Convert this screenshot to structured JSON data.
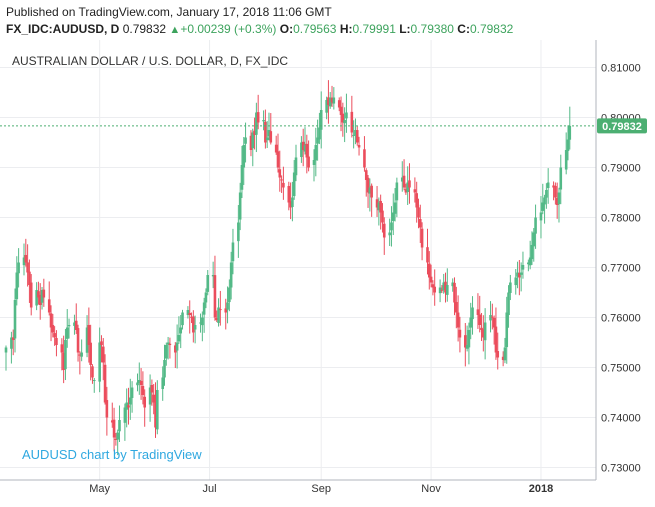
{
  "header": {
    "published": "Published on TradingView.com, January 17, 2018 11:06 GMT",
    "symbol": "FX_IDC:AUDUSD, D",
    "last": "0.79832",
    "arrow": "▲",
    "change": "+0.00239 (+0.3%)",
    "o_label": "O:",
    "o_value": "0.79563",
    "h_label": "H:",
    "h_value": "0.79991",
    "l_label": "L:",
    "l_value": "0.79380",
    "c_label": "C:",
    "c_value": "0.79832"
  },
  "watermark": "AUDUSD chart by TradingView",
  "colors": {
    "up": "#53b987",
    "down": "#eb4d5c",
    "grid": "#ecedf0",
    "price_label_bg": "#4caf72",
    "watermark": "#2fa8e0"
  },
  "chart_data": {
    "type": "candlestick",
    "title": "AUSTRALIAN DOLLAR / U.S. DOLLAR, D, FX_IDC",
    "ylim": [
      0.7275,
      0.8155
    ],
    "y_ticks": [
      "0.81000",
      "0.80000",
      "0.79000",
      "0.78000",
      "0.77000",
      "0.76000",
      "0.75000",
      "0.74000",
      "0.73000"
    ],
    "y_tick_values": [
      0.81,
      0.8,
      0.79,
      0.78,
      0.77,
      0.76,
      0.75,
      0.74,
      0.73
    ],
    "x_ticks": [
      "May",
      "Jul",
      "Sep",
      "Nov",
      "2018"
    ],
    "x_tick_dates": [
      "2017-05-01",
      "2017-07-01",
      "2017-09-01",
      "2017-11-01",
      "2018-01-01"
    ],
    "x_range": [
      "2017-03-10",
      "2018-01-26"
    ],
    "last_price": 0.79832,
    "last_price_label": "0.79832",
    "grid": true,
    "daily_closes": [
      [
        "2017-03-10",
        0.754
      ],
      [
        "2017-03-13",
        0.756
      ],
      [
        "2017-03-14",
        0.7555
      ],
      [
        "2017-03-15",
        0.7635
      ],
      [
        "2017-03-16",
        0.769
      ],
      [
        "2017-03-17",
        0.771
      ],
      [
        "2017-03-20",
        0.772
      ],
      [
        "2017-03-21",
        0.771
      ],
      [
        "2017-03-22",
        0.769
      ],
      [
        "2017-03-23",
        0.7665
      ],
      [
        "2017-03-24",
        0.762
      ],
      [
        "2017-03-27",
        0.7655
      ],
      [
        "2017-03-28",
        0.764
      ],
      [
        "2017-03-29",
        0.7625
      ],
      [
        "2017-03-30",
        0.7655
      ],
      [
        "2017-03-31",
        0.764
      ],
      [
        "2017-04-03",
        0.761
      ],
      [
        "2017-04-04",
        0.758
      ],
      [
        "2017-04-05",
        0.757
      ],
      [
        "2017-04-06",
        0.756
      ],
      [
        "2017-04-07",
        0.7545
      ],
      [
        "2017-04-10",
        0.753
      ],
      [
        "2017-04-11",
        0.7495
      ],
      [
        "2017-04-12",
        0.7555
      ],
      [
        "2017-04-13",
        0.758
      ],
      [
        "2017-04-14",
        0.7585
      ],
      [
        "2017-04-17",
        0.759
      ],
      [
        "2017-04-18",
        0.7575
      ],
      [
        "2017-04-19",
        0.753
      ],
      [
        "2017-04-20",
        0.7525
      ],
      [
        "2017-04-21",
        0.753
      ],
      [
        "2017-04-24",
        0.758
      ],
      [
        "2017-04-25",
        0.7545
      ],
      [
        "2017-04-26",
        0.7505
      ],
      [
        "2017-04-27",
        0.748
      ],
      [
        "2017-04-28",
        0.7475
      ],
      [
        "2017-05-01",
        0.755
      ],
      [
        "2017-05-02",
        0.7545
      ],
      [
        "2017-05-03",
        0.751
      ],
      [
        "2017-05-04",
        0.743
      ],
      [
        "2017-05-05",
        0.74
      ],
      [
        "2017-05-08",
        0.739
      ],
      [
        "2017-05-09",
        0.736
      ],
      [
        "2017-05-10",
        0.7355
      ],
      [
        "2017-05-11",
        0.737
      ],
      [
        "2017-05-12",
        0.7395
      ],
      [
        "2017-05-15",
        0.742
      ],
      [
        "2017-05-16",
        0.743
      ],
      [
        "2017-05-17",
        0.742
      ],
      [
        "2017-05-18",
        0.744
      ],
      [
        "2017-05-19",
        0.746
      ],
      [
        "2017-05-22",
        0.747
      ],
      [
        "2017-05-23",
        0.7475
      ],
      [
        "2017-05-24",
        0.7465
      ],
      [
        "2017-05-25",
        0.7445
      ],
      [
        "2017-05-26",
        0.742
      ],
      [
        "2017-05-29",
        0.746
      ],
      [
        "2017-05-30",
        0.745
      ],
      [
        "2017-05-31",
        0.743
      ],
      [
        "2017-06-01",
        0.738
      ],
      [
        "2017-06-02",
        0.7455
      ],
      [
        "2017-06-05",
        0.748
      ],
      [
        "2017-06-06",
        0.7515
      ],
      [
        "2017-06-07",
        0.7545
      ],
      [
        "2017-06-08",
        0.755
      ],
      [
        "2017-06-09",
        0.7545
      ],
      [
        "2017-06-12",
        0.753
      ],
      [
        "2017-06-13",
        0.755
      ],
      [
        "2017-06-14",
        0.7565
      ],
      [
        "2017-06-15",
        0.758
      ],
      [
        "2017-06-16",
        0.761
      ],
      [
        "2017-06-19",
        0.7615
      ],
      [
        "2017-06-20",
        0.7605
      ],
      [
        "2017-06-21",
        0.76
      ],
      [
        "2017-06-22",
        0.757
      ],
      [
        "2017-06-23",
        0.7585
      ],
      [
        "2017-06-26",
        0.759
      ],
      [
        "2017-06-27",
        0.76
      ],
      [
        "2017-06-28",
        0.763
      ],
      [
        "2017-06-29",
        0.765
      ],
      [
        "2017-06-30",
        0.7685
      ],
      [
        "2017-07-03",
        0.7685
      ],
      [
        "2017-07-04",
        0.76
      ],
      [
        "2017-07-05",
        0.7595
      ],
      [
        "2017-07-06",
        0.762
      ],
      [
        "2017-07-07",
        0.7615
      ],
      [
        "2017-07-10",
        0.761
      ],
      [
        "2017-07-11",
        0.763
      ],
      [
        "2017-07-12",
        0.766
      ],
      [
        "2017-07-13",
        0.771
      ],
      [
        "2017-07-14",
        0.775
      ],
      [
        "2017-07-17",
        0.779
      ],
      [
        "2017-07-18",
        0.785
      ],
      [
        "2017-07-19",
        0.7905
      ],
      [
        "2017-07-20",
        0.7945
      ],
      [
        "2017-07-21",
        0.796
      ],
      [
        "2017-07-24",
        0.7935
      ],
      [
        "2017-07-25",
        0.797
      ],
      [
        "2017-07-26",
        0.7965
      ],
      [
        "2017-07-27",
        0.801
      ],
      [
        "2017-07-28",
        0.799
      ],
      [
        "2017-07-31",
        0.7995
      ],
      [
        "2017-08-01",
        0.795
      ],
      [
        "2017-08-02",
        0.796
      ],
      [
        "2017-08-03",
        0.7975
      ],
      [
        "2017-08-04",
        0.795
      ],
      [
        "2017-08-07",
        0.793
      ],
      [
        "2017-08-08",
        0.79
      ],
      [
        "2017-08-09",
        0.788
      ],
      [
        "2017-08-10",
        0.7875
      ],
      [
        "2017-08-11",
        0.786
      ],
      [
        "2017-08-14",
        0.783
      ],
      [
        "2017-08-15",
        0.782
      ],
      [
        "2017-08-16",
        0.784
      ],
      [
        "2017-08-17",
        0.789
      ],
      [
        "2017-08-18",
        0.792
      ],
      [
        "2017-08-21",
        0.795
      ],
      [
        "2017-08-22",
        0.7935
      ],
      [
        "2017-08-23",
        0.7945
      ],
      [
        "2017-08-24",
        0.792
      ],
      [
        "2017-08-25",
        0.79
      ],
      [
        "2017-08-28",
        0.7915
      ],
      [
        "2017-08-29",
        0.7945
      ],
      [
        "2017-08-30",
        0.796
      ],
      [
        "2017-08-31",
        0.798
      ],
      [
        "2017-09-01",
        0.8015
      ],
      [
        "2017-09-04",
        0.8035
      ],
      [
        "2017-09-05",
        0.8025
      ],
      [
        "2017-09-06",
        0.804
      ],
      [
        "2017-09-07",
        0.803
      ],
      [
        "2017-09-08",
        0.804
      ],
      [
        "2017-09-11",
        0.802
      ],
      [
        "2017-09-12",
        0.8005
      ],
      [
        "2017-09-13",
        0.799
      ],
      [
        "2017-09-14",
        0.7995
      ],
      [
        "2017-09-15",
        0.801
      ],
      [
        "2017-09-18",
        0.797
      ],
      [
        "2017-09-19",
        0.7965
      ],
      [
        "2017-09-20",
        0.7975
      ],
      [
        "2017-09-21",
        0.795
      ],
      [
        "2017-09-22",
        0.794
      ],
      [
        "2017-09-25",
        0.79
      ],
      [
        "2017-09-26",
        0.7875
      ],
      [
        "2017-09-27",
        0.785
      ],
      [
        "2017-09-28",
        0.786
      ],
      [
        "2017-09-29",
        0.784
      ],
      [
        "2017-10-02",
        0.782
      ],
      [
        "2017-10-03",
        0.783
      ],
      [
        "2017-10-04",
        0.781
      ],
      [
        "2017-10-05",
        0.779
      ],
      [
        "2017-10-06",
        0.776
      ],
      [
        "2017-10-09",
        0.777
      ],
      [
        "2017-10-10",
        0.779
      ],
      [
        "2017-10-11",
        0.781
      ],
      [
        "2017-10-12",
        0.783
      ],
      [
        "2017-10-13",
        0.787
      ],
      [
        "2017-10-16",
        0.788
      ],
      [
        "2017-10-17",
        0.786
      ],
      [
        "2017-10-18",
        0.785
      ],
      [
        "2017-10-19",
        0.787
      ],
      [
        "2017-10-20",
        0.786
      ],
      [
        "2017-10-23",
        0.785
      ],
      [
        "2017-10-24",
        0.782
      ],
      [
        "2017-10-25",
        0.78
      ],
      [
        "2017-10-26",
        0.778
      ],
      [
        "2017-10-27",
        0.774
      ],
      [
        "2017-10-30",
        0.771
      ],
      [
        "2017-10-31",
        0.768
      ],
      [
        "2017-11-01",
        0.767
      ],
      [
        "2017-11-02",
        0.766
      ],
      [
        "2017-11-03",
        0.765
      ],
      [
        "2017-11-06",
        0.766
      ],
      [
        "2017-11-07",
        0.7655
      ],
      [
        "2017-11-08",
        0.767
      ],
      [
        "2017-11-09",
        0.765
      ],
      [
        "2017-11-10",
        0.7665
      ],
      [
        "2017-11-13",
        0.767
      ],
      [
        "2017-11-14",
        0.763
      ],
      [
        "2017-11-15",
        0.761
      ],
      [
        "2017-11-16",
        0.758
      ],
      [
        "2017-11-17",
        0.756
      ],
      [
        "2017-11-20",
        0.754
      ],
      [
        "2017-11-21",
        0.7545
      ],
      [
        "2017-11-22",
        0.7575
      ],
      [
        "2017-11-23",
        0.76
      ],
      [
        "2017-11-24",
        0.762
      ],
      [
        "2017-11-27",
        0.7605
      ],
      [
        "2017-11-28",
        0.7585
      ],
      [
        "2017-11-29",
        0.7575
      ],
      [
        "2017-11-30",
        0.756
      ],
      [
        "2017-12-01",
        0.759
      ],
      [
        "2017-12-04",
        0.7605
      ],
      [
        "2017-12-05",
        0.76
      ],
      [
        "2017-12-06",
        0.758
      ],
      [
        "2017-12-07",
        0.753
      ],
      [
        "2017-12-08",
        0.752
      ],
      [
        "2017-12-11",
        0.7515
      ],
      [
        "2017-12-12",
        0.754
      ],
      [
        "2017-12-13",
        0.761
      ],
      [
        "2017-12-14",
        0.765
      ],
      [
        "2017-12-15",
        0.767
      ],
      [
        "2017-12-18",
        0.768
      ],
      [
        "2017-12-19",
        0.769
      ],
      [
        "2017-12-20",
        0.768
      ],
      [
        "2017-12-21",
        0.769
      ],
      [
        "2017-12-22",
        0.7705
      ],
      [
        "2017-12-25",
        0.771
      ],
      [
        "2017-12-26",
        0.772
      ],
      [
        "2017-12-27",
        0.7745
      ],
      [
        "2017-12-28",
        0.777
      ],
      [
        "2017-12-29",
        0.78
      ],
      [
        "2018-01-01",
        0.781
      ],
      [
        "2018-01-02",
        0.783
      ],
      [
        "2018-01-03",
        0.784
      ],
      [
        "2018-01-04",
        0.7855
      ],
      [
        "2018-01-05",
        0.787
      ],
      [
        "2018-01-08",
        0.786
      ],
      [
        "2018-01-09",
        0.784
      ],
      [
        "2018-01-10",
        0.7825
      ],
      [
        "2018-01-11",
        0.785
      ],
      [
        "2018-01-12",
        0.79
      ],
      [
        "2018-01-15",
        0.7935
      ],
      [
        "2018-01-16",
        0.7956
      ],
      [
        "2018-01-17",
        0.79832
      ]
    ]
  }
}
